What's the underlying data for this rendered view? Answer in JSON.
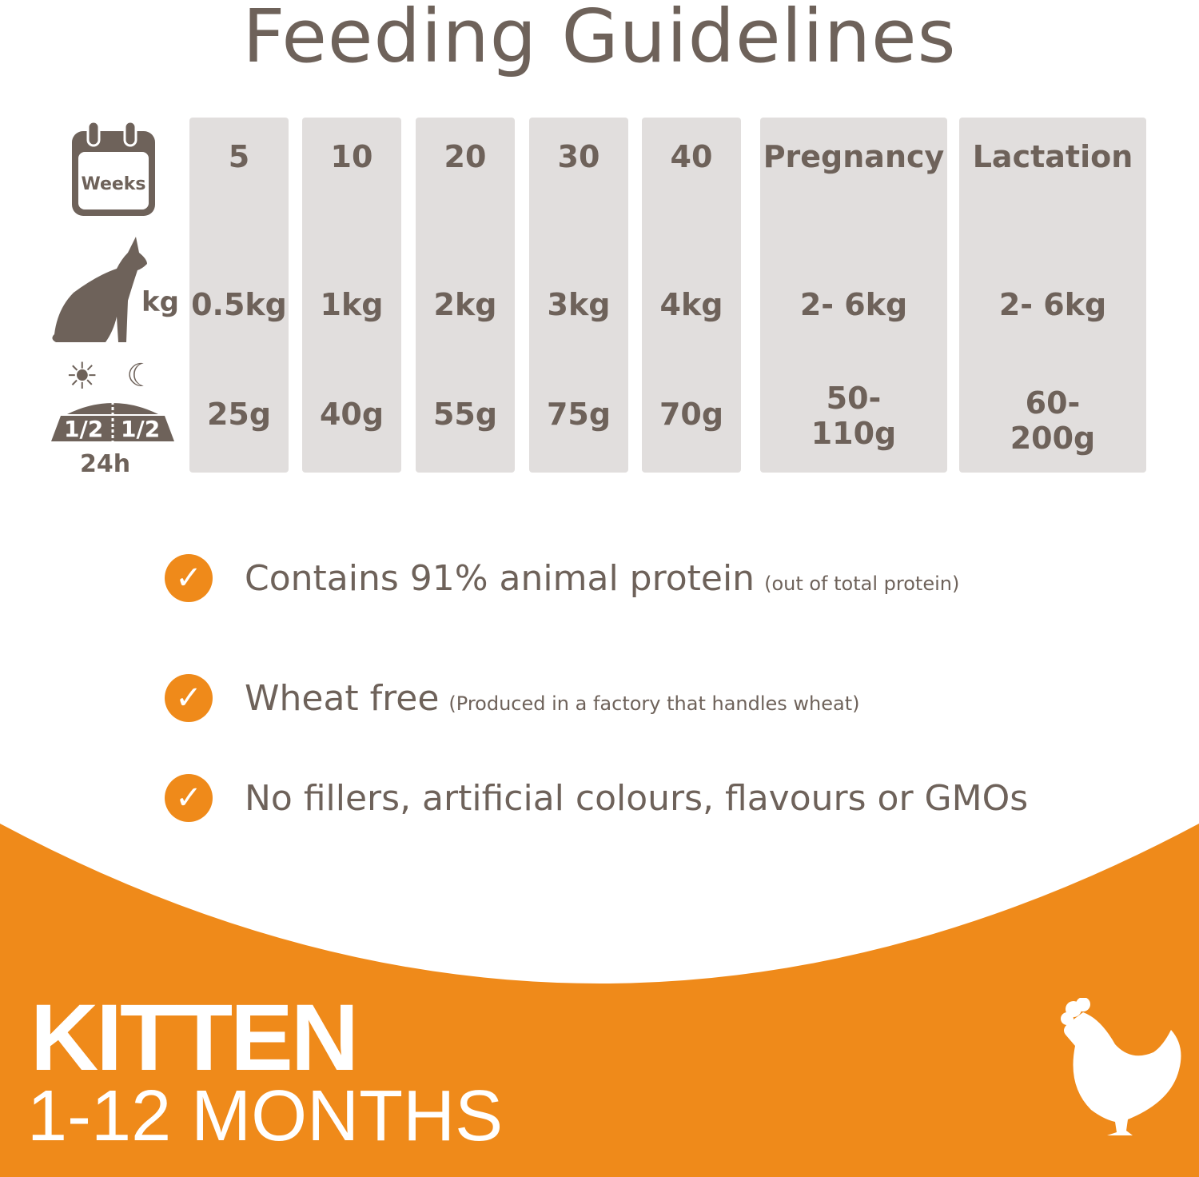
{
  "title": "Feeding Guidelines",
  "icons": {
    "weeks_label": "Weeks",
    "kg_label": "kg",
    "bowl_left": "1/2",
    "bowl_right": "1/2",
    "period": "24h"
  },
  "columns": [
    {
      "header": "5",
      "weight": "0.5kg",
      "amount": "25g"
    },
    {
      "header": "10",
      "weight": "1kg",
      "amount": "40g"
    },
    {
      "header": "20",
      "weight": "2kg",
      "amount": "55g"
    },
    {
      "header": "30",
      "weight": "3kg",
      "amount": "75g"
    },
    {
      "header": "40",
      "weight": "4kg",
      "amount": "70g"
    },
    {
      "header": "Pregnancy",
      "weight": "2- 6kg",
      "amount_line1": "50-",
      "amount_line2": "110g"
    },
    {
      "header": "Lactation",
      "weight": "2- 6kg",
      "amount_line1": "60-",
      "amount_line2": "200g"
    }
  ],
  "features": [
    {
      "main": "Contains 91% animal protein",
      "note": "(out of total protein)"
    },
    {
      "main": "Wheat free",
      "note": "(Produced in a factory that handles wheat)"
    },
    {
      "main": "No fillers, artificial colours, flavours or GMOs",
      "note": ""
    }
  ],
  "banner": {
    "line1": "KITTEN",
    "line2": "1-12 MONTHS"
  },
  "colors": {
    "brown": "#6e625a",
    "orange": "#ef8a1a",
    "grey": "#e1dedd"
  },
  "check_glyph": "✓"
}
